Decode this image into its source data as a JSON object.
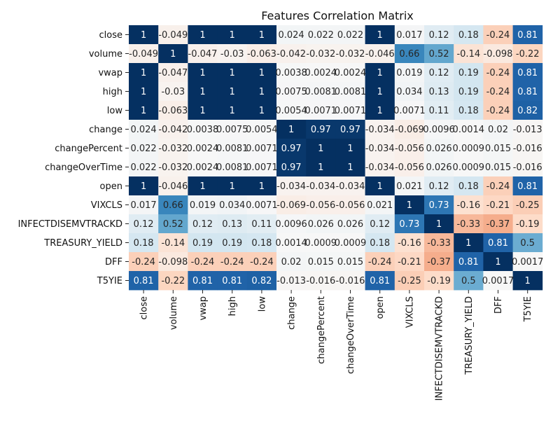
{
  "chart_data": {
    "type": "heatmap",
    "title": "Features Correlation Matrix",
    "xlabel": "",
    "ylabel": "",
    "row_labels": [
      "close",
      "volume",
      "vwap",
      "high",
      "low",
      "change",
      "changePercent",
      "changeOverTime",
      "open",
      "VIXCLS",
      "INFECTDISEMVTRACKD",
      "TREASURY_YIELD",
      "DFF",
      "T5YIE"
    ],
    "col_labels": [
      "close",
      "volume",
      "vwap",
      "high",
      "low",
      "change",
      "changePercent",
      "changeOverTime",
      "open",
      "VIXCLS",
      "INFECTDISEMVTRACKD",
      "TREASURY_YIELD",
      "DFF",
      "T5YIE"
    ],
    "values": [
      [
        1,
        -0.049,
        1,
        1,
        1,
        0.024,
        0.022,
        0.022,
        1,
        0.017,
        0.12,
        0.18,
        -0.24,
        0.81
      ],
      [
        -0.049,
        1,
        -0.047,
        -0.03,
        -0.063,
        -0.042,
        -0.032,
        -0.032,
        -0.046,
        0.66,
        0.52,
        -0.14,
        -0.098,
        -0.22
      ],
      [
        1,
        -0.047,
        1,
        1,
        1,
        0.0038,
        0.0024,
        0.0024,
        1,
        0.019,
        0.12,
        0.19,
        -0.24,
        0.81
      ],
      [
        1,
        -0.03,
        1,
        1,
        1,
        0.0075,
        0.0081,
        0.0081,
        1,
        0.034,
        0.13,
        0.19,
        -0.24,
        0.81
      ],
      [
        1,
        -0.063,
        1,
        1,
        1,
        0.0054,
        0.0071,
        0.0071,
        1,
        0.0071,
        0.11,
        0.18,
        -0.24,
        0.82
      ],
      [
        0.024,
        -0.042,
        0.0038,
        0.0075,
        0.0054,
        1,
        0.97,
        0.97,
        -0.034,
        -0.069,
        0.0096,
        0.0014,
        0.02,
        -0.013
      ],
      [
        0.022,
        -0.032,
        0.0024,
        0.0081,
        0.0071,
        0.97,
        1,
        1,
        -0.034,
        -0.056,
        0.026,
        0.0009,
        0.015,
        -0.016
      ],
      [
        0.022,
        -0.032,
        0.0024,
        0.0081,
        0.0071,
        0.97,
        1,
        1,
        -0.034,
        -0.056,
        0.026,
        0.0009,
        0.015,
        -0.016
      ],
      [
        1,
        -0.046,
        1,
        1,
        1,
        -0.034,
        -0.034,
        -0.034,
        1,
        0.021,
        0.12,
        0.18,
        -0.24,
        0.81
      ],
      [
        0.017,
        0.66,
        0.019,
        0.034,
        0.0071,
        -0.069,
        -0.056,
        -0.056,
        0.021,
        1,
        0.73,
        -0.16,
        -0.21,
        -0.25
      ],
      [
        0.12,
        0.52,
        0.12,
        0.13,
        0.11,
        0.0096,
        0.026,
        0.026,
        0.12,
        0.73,
        1,
        -0.33,
        -0.37,
        -0.19
      ],
      [
        0.18,
        -0.14,
        0.19,
        0.19,
        0.18,
        0.0014,
        0.0009,
        0.0009,
        0.18,
        -0.16,
        -0.33,
        1,
        0.81,
        0.5
      ],
      [
        -0.24,
        -0.098,
        -0.24,
        -0.24,
        -0.24,
        0.02,
        0.015,
        0.015,
        -0.24,
        -0.21,
        -0.37,
        0.81,
        1,
        0.0017
      ],
      [
        0.81,
        -0.22,
        0.81,
        0.81,
        0.82,
        -0.013,
        -0.016,
        -0.016,
        0.81,
        -0.25,
        -0.19,
        0.5,
        0.0017,
        1
      ]
    ],
    "value_labels": [
      [
        "1",
        "-0.049",
        "1",
        "1",
        "1",
        "0.024",
        "0.022",
        "0.022",
        "1",
        "0.017",
        "0.12",
        "0.18",
        "-0.24",
        "0.81"
      ],
      [
        "-0.049",
        "1",
        "-0.047",
        "-0.03",
        "-0.063",
        "-0.042",
        "-0.032",
        "-0.032",
        "-0.046",
        "0.66",
        "0.52",
        "-0.14",
        "-0.098",
        "-0.22"
      ],
      [
        "1",
        "-0.047",
        "1",
        "1",
        "1",
        "0.0038",
        "0.0024",
        "0.0024",
        "1",
        "0.019",
        "0.12",
        "0.19",
        "-0.24",
        "0.81"
      ],
      [
        "1",
        "-0.03",
        "1",
        "1",
        "1",
        "0.0075",
        "0.0081",
        "0.0081",
        "1",
        "0.034",
        "0.13",
        "0.19",
        "-0.24",
        "0.81"
      ],
      [
        "1",
        "-0.063",
        "1",
        "1",
        "1",
        "0.0054",
        "0.0071",
        "0.0071",
        "1",
        "0.0071",
        "0.11",
        "0.18",
        "-0.24",
        "0.82"
      ],
      [
        "0.024",
        "-0.042",
        "0.0038",
        "0.0075",
        "0.0054",
        "1",
        "0.97",
        "0.97",
        "-0.034",
        "-0.069",
        "0.0096",
        "0.0014",
        "0.02",
        "-0.013"
      ],
      [
        "0.022",
        "-0.032",
        "0.0024",
        "0.0081",
        "0.0071",
        "0.97",
        "1",
        "1",
        "-0.034",
        "-0.056",
        "0.026",
        "0.0009",
        "0.015",
        "-0.016"
      ],
      [
        "0.022",
        "-0.032",
        "0.0024",
        "0.0081",
        "0.0071",
        "0.97",
        "1",
        "1",
        "-0.034",
        "-0.056",
        "0.026",
        "0.0009",
        "0.015",
        "-0.016"
      ],
      [
        "1",
        "-0.046",
        "1",
        "1",
        "1",
        "-0.034",
        "-0.034",
        "-0.034",
        "1",
        "0.021",
        "0.12",
        "0.18",
        "-0.24",
        "0.81"
      ],
      [
        "0.017",
        "0.66",
        "0.019",
        "0.034",
        "0.0071",
        "-0.069",
        "-0.056",
        "-0.056",
        "0.021",
        "1",
        "0.73",
        "-0.16",
        "-0.21",
        "-0.25"
      ],
      [
        "0.12",
        "0.52",
        "0.12",
        "0.13",
        "0.11",
        "0.0096",
        "0.026",
        "0.026",
        "0.12",
        "0.73",
        "1",
        "-0.33",
        "-0.37",
        "-0.19"
      ],
      [
        "0.18",
        "-0.14",
        "0.19",
        "0.19",
        "0.18",
        "0.0014",
        "0.0009",
        "0.0009",
        "0.18",
        "-0.16",
        "-0.33",
        "1",
        "0.81",
        "0.5"
      ],
      [
        "-0.24",
        "-0.098",
        "-0.24",
        "-0.24",
        "-0.24",
        "0.02",
        "0.015",
        "0.015",
        "-0.24",
        "-0.21",
        "-0.37",
        "0.81",
        "1",
        "0.0017"
      ],
      [
        "0.81",
        "-0.22",
        "0.81",
        "0.81",
        "0.82",
        "-0.013",
        "-0.016",
        "-0.016",
        "0.81",
        "-0.25",
        "-0.19",
        "0.5",
        "0.0017",
        "1"
      ]
    ],
    "colormap": "RdBu",
    "colorbar": false,
    "value_range": [
      -1,
      1
    ]
  }
}
